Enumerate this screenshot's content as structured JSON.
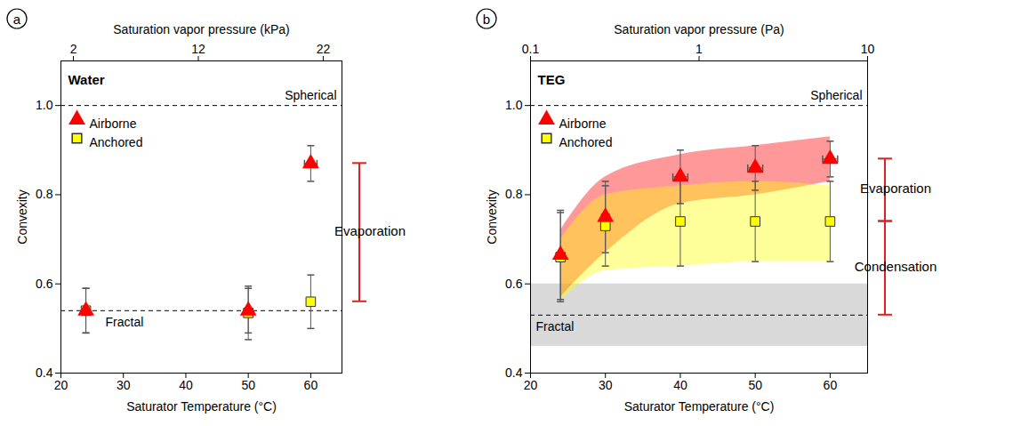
{
  "chart_data": [
    {
      "type": "scatter",
      "panel_label": "a",
      "title": "Water",
      "x_label": "Saturator Temperature (°C)",
      "y_label": "Convexity",
      "x2_label": "Saturation vapor pressure (kPa)",
      "xlim": [
        20,
        65
      ],
      "xticks": [
        20,
        30,
        40,
        50,
        60
      ],
      "x2lim": [
        1,
        23.5
      ],
      "x2ticks": [
        2,
        12,
        22
      ],
      "ylim": [
        0.4,
        1.1
      ],
      "yticks": [
        0.4,
        0.6,
        0.8,
        {
          "value": 1,
          "label": "1.0"
        }
      ],
      "legend": "top-left",
      "reference_lines": [
        {
          "label": "Spherical",
          "value": 1
        },
        {
          "label": "Fractal",
          "value": 0.54
        }
      ],
      "brackets": [
        {
          "label": "Evaporation",
          "from": 0.56,
          "to": 0.87
        }
      ],
      "series": [
        {
          "name": "Airborne",
          "color": "#ff0000",
          "marker": "triangle",
          "x": [
            24,
            50,
            60
          ],
          "values": [
            0.54,
            0.54,
            0.87
          ],
          "y_err": [
            0.05,
            0.05,
            0.04
          ],
          "x_err": [
            0,
            0,
            1
          ]
        },
        {
          "name": "Anchored",
          "color": "#ffff00",
          "marker": "square",
          "x": [
            24,
            50,
            60
          ],
          "values": [
            0.54,
            0.535,
            0.56
          ],
          "y_err": [
            0.05,
            0.06,
            0.06
          ],
          "x_err": [
            0,
            0,
            0
          ]
        }
      ]
    },
    {
      "type": "scatter",
      "panel_label": "b",
      "title": "TEG",
      "x_label": "Saturator Temperature (°C)",
      "y_label": "Convexity",
      "x2_label": "Saturation vapor pressure (Pa)",
      "log": "x2",
      "xlim": [
        20,
        65
      ],
      "xticks": [
        20,
        30,
        40,
        50,
        60
      ],
      "x2lim": [
        0.1,
        10
      ],
      "x2ticks": [
        0.1,
        1,
        10
      ],
      "ylim": [
        0.4,
        1.1
      ],
      "yticks": [
        0.4,
        0.6,
        0.8,
        {
          "value": 1,
          "label": "1.0"
        }
      ],
      "legend": "top-left",
      "reference_lines": [
        {
          "label": "Spherical",
          "value": 1
        },
        {
          "label": "Fractal",
          "value": 0.53,
          "range": [
            0.46,
            0.6
          ]
        }
      ],
      "brackets": [
        {
          "label": "Evaporation",
          "from": 0.74,
          "to": 0.88
        },
        {
          "label": "Condensation",
          "from": 0.53,
          "to": 0.74
        }
      ],
      "series": [
        {
          "name": "Airborne",
          "color": "#ff0000",
          "marker": "triangle",
          "x": [
            24,
            30,
            40,
            50,
            60
          ],
          "values": [
            0.665,
            0.75,
            0.84,
            0.86,
            0.88
          ],
          "y_err": [
            0.1,
            0.08,
            0.06,
            0.05,
            0.04
          ],
          "x_err": [
            0,
            0.5,
            1,
            1,
            1
          ],
          "band_low": [
            0.57,
            0.67,
            0.78,
            0.8,
            0.83
          ],
          "band_high": [
            0.72,
            0.84,
            0.89,
            0.91,
            0.93
          ]
        },
        {
          "name": "Anchored",
          "color": "#ffff00",
          "marker": "square",
          "x": [
            24,
            30,
            40,
            50,
            60
          ],
          "values": [
            0.66,
            0.73,
            0.74,
            0.74,
            0.74
          ],
          "y_err": [
            0.1,
            0.09,
            0.1,
            0.09,
            0.09
          ],
          "x_err": [
            0,
            0,
            0,
            0,
            0
          ],
          "band_low": [
            0.56,
            0.63,
            0.64,
            0.65,
            0.65
          ],
          "band_high": [
            0.7,
            0.8,
            0.82,
            0.83,
            0.82
          ]
        }
      ]
    }
  ]
}
